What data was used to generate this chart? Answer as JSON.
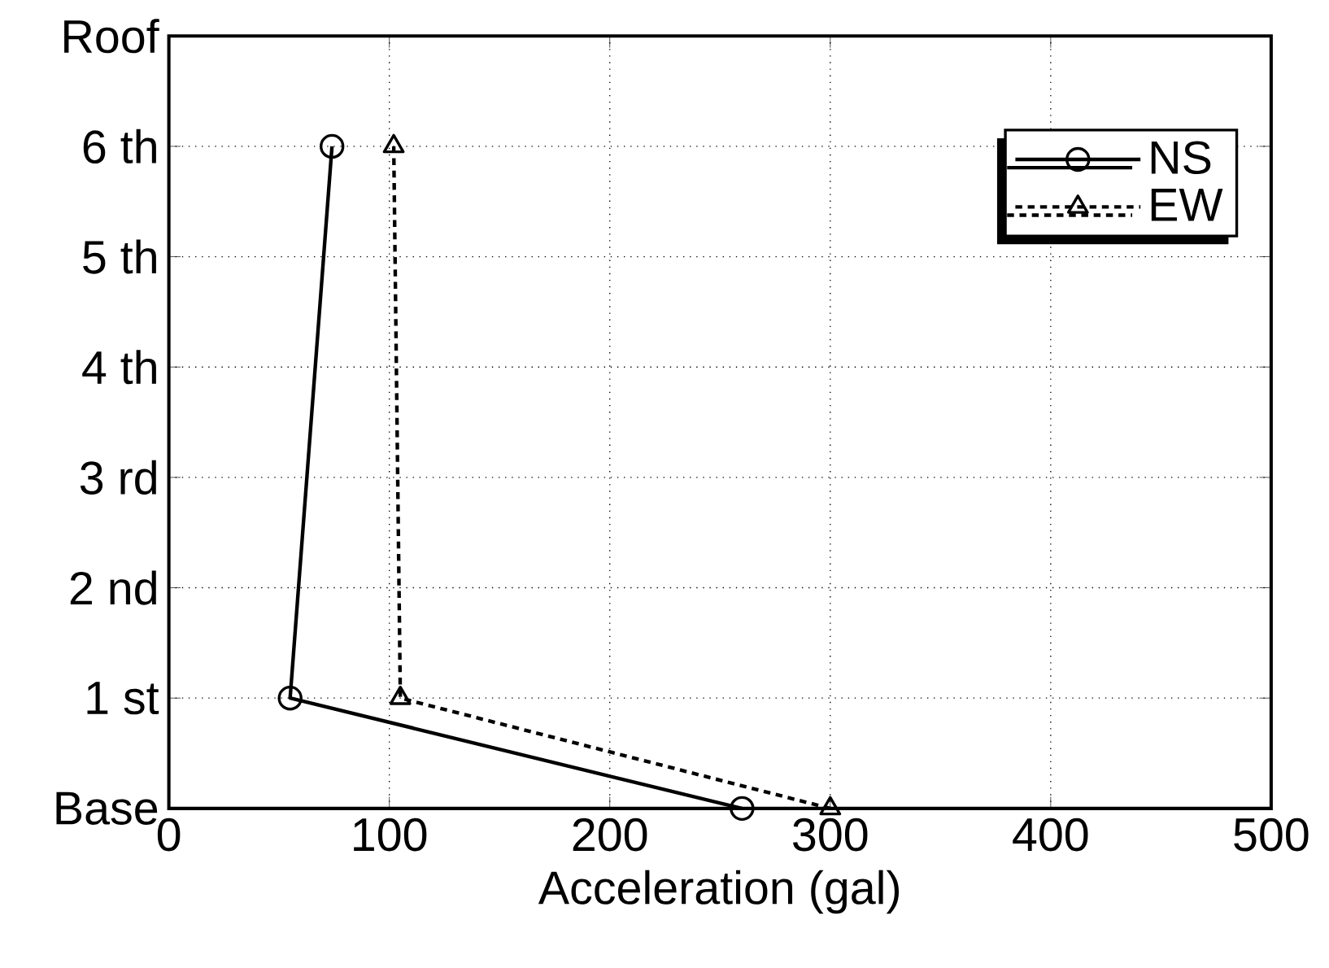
{
  "chart_data": {
    "type": "line",
    "xlabel": "Acceleration (gal)",
    "xlim": [
      0,
      500
    ],
    "xticks": [
      0,
      100,
      200,
      300,
      400,
      500
    ],
    "ylim": [
      0,
      7
    ],
    "yticks": [
      {
        "value": 0,
        "label": "Base"
      },
      {
        "value": 1,
        "label": "1 st"
      },
      {
        "value": 2,
        "label": "2 nd"
      },
      {
        "value": 3,
        "label": "3 rd"
      },
      {
        "value": 4,
        "label": "4 th"
      },
      {
        "value": 5,
        "label": "5 th"
      },
      {
        "value": 6,
        "label": "6 th"
      },
      {
        "value": 7,
        "label": "Roof"
      }
    ],
    "grid": true,
    "legend": "top right",
    "series": [
      {
        "name": "NS",
        "color": "#000000",
        "marker": "circle",
        "line_style": "solid",
        "x": [
          260,
          55,
          74
        ],
        "values": [
          0,
          1,
          6
        ]
      },
      {
        "name": "EW",
        "color": "#000000",
        "marker": "triangle",
        "line_style": "dotted",
        "x": [
          300,
          105,
          102
        ],
        "values": [
          0,
          1,
          6
        ]
      }
    ]
  }
}
